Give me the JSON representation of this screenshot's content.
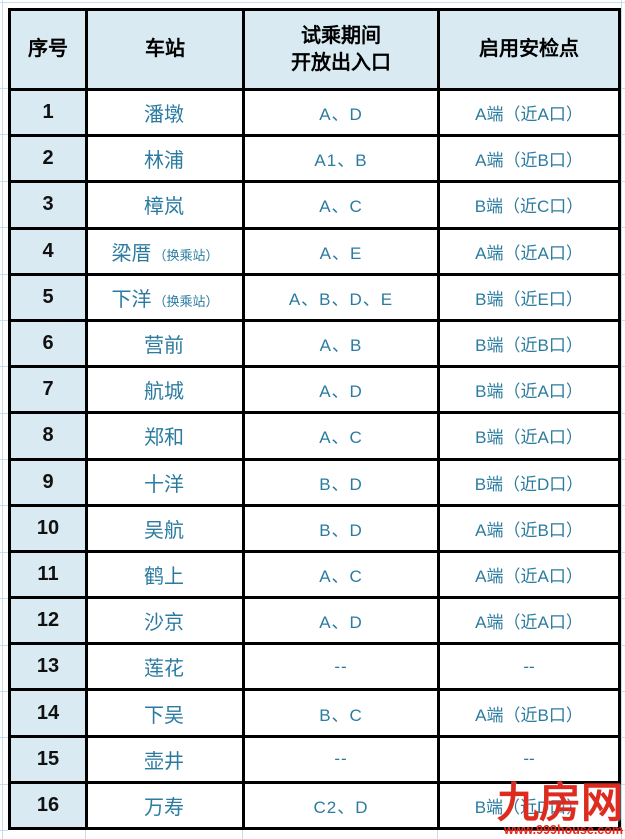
{
  "colors": {
    "header_bg": "#d9eaf2",
    "accent_text": "#2b7ba0",
    "serial_text": "#111111",
    "border": "#000000",
    "gridline": "#c9ddeb",
    "watermark_red": "#dd2c1f"
  },
  "table": {
    "header": {
      "no": "序号",
      "station": "车站",
      "entrances_line1": "试乘期间",
      "entrances_line2": "开放出入口",
      "security": "启用安检点"
    },
    "rows": [
      {
        "no": "1",
        "station": "潘墩",
        "note": "",
        "entrances": "A、D",
        "security": "A端（近A口）"
      },
      {
        "no": "2",
        "station": "林浦",
        "note": "",
        "entrances": "A1、B",
        "security": "A端（近B口）"
      },
      {
        "no": "3",
        "station": "樟岚",
        "note": "",
        "entrances": "A、C",
        "security": "B端（近C口）"
      },
      {
        "no": "4",
        "station": "梁厝",
        "note": "（换乘站）",
        "entrances": "A、E",
        "security": "A端（近A口）"
      },
      {
        "no": "5",
        "station": "下洋",
        "note": "（换乘站）",
        "entrances": "A、B、D、E",
        "security": "B端（近E口）"
      },
      {
        "no": "6",
        "station": "营前",
        "note": "",
        "entrances": "A、B",
        "security": "B端（近B口）"
      },
      {
        "no": "7",
        "station": "航城",
        "note": "",
        "entrances": "A、D",
        "security": "B端（近A口）"
      },
      {
        "no": "8",
        "station": "郑和",
        "note": "",
        "entrances": "A、C",
        "security": "B端（近A口）"
      },
      {
        "no": "9",
        "station": "十洋",
        "note": "",
        "entrances": "B、D",
        "security": "B端（近D口）"
      },
      {
        "no": "10",
        "station": "吴航",
        "note": "",
        "entrances": "B、D",
        "security": "A端（近B口）"
      },
      {
        "no": "11",
        "station": "鹤上",
        "note": "",
        "entrances": "A、C",
        "security": "A端（近A口）"
      },
      {
        "no": "12",
        "station": "沙京",
        "note": "",
        "entrances": "A、D",
        "security": "A端（近A口）"
      },
      {
        "no": "13",
        "station": "莲花",
        "note": "",
        "entrances": "--",
        "security": "--"
      },
      {
        "no": "14",
        "station": "下吴",
        "note": "",
        "entrances": "B、C",
        "security": "A端（近B口）"
      },
      {
        "no": "15",
        "station": "壶井",
        "note": "",
        "entrances": "--",
        "security": "--"
      },
      {
        "no": "16",
        "station": "万寿",
        "note": "",
        "entrances": "C2、D",
        "security": "B端（近D口）"
      }
    ]
  },
  "watermark": {
    "logo": "九房网",
    "url": "www.999house.com"
  }
}
